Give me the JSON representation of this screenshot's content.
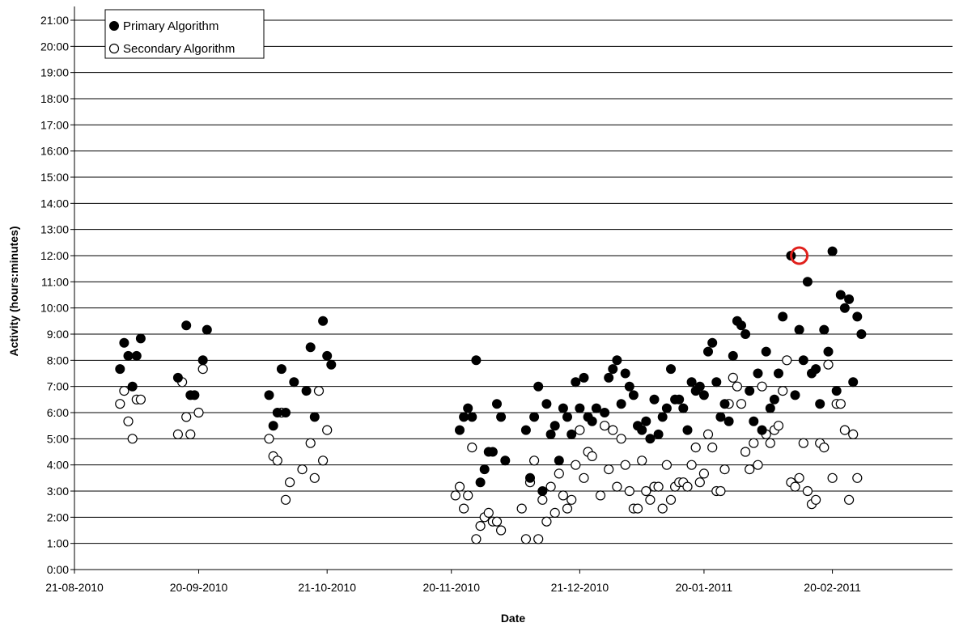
{
  "chart_data": {
    "type": "scatter",
    "title": "",
    "xlabel": "Date",
    "ylabel": "Activity (hours:minutes)",
    "x_ticks": [
      "21-08-2010",
      "20-09-2010",
      "21-10-2010",
      "20-11-2010",
      "21-12-2010",
      "20-01-2011",
      "20-02-2011"
    ],
    "x_range": [
      "21-08-2010",
      "21-03-2011"
    ],
    "y_ticks": [
      "0:00",
      "1:00",
      "2:00",
      "3:00",
      "4:00",
      "5:00",
      "6:00",
      "7:00",
      "8:00",
      "9:00",
      "10:00",
      "11:00",
      "12:00",
      "13:00",
      "14:00",
      "15:00",
      "16:00",
      "17:00",
      "18:00",
      "19:00",
      "20:00",
      "21:00"
    ],
    "ylim": [
      "0:00",
      "21:00"
    ],
    "grid": "horizontal",
    "legend_position": "top-left",
    "highlight": {
      "x": "12-02-2011",
      "y": "12:00",
      "color": "#e0201c"
    },
    "series": [
      {
        "name": "Primary Algorithm",
        "marker": "filled-circle",
        "color": "#000000",
        "points": [
          [
            "01-09-2010",
            "7:40"
          ],
          [
            "02-09-2010",
            "8:40"
          ],
          [
            "03-09-2010",
            "8:10"
          ],
          [
            "04-09-2010",
            "7:00"
          ],
          [
            "05-09-2010",
            "8:10"
          ],
          [
            "06-09-2010",
            "8:50"
          ],
          [
            "15-09-2010",
            "7:20"
          ],
          [
            "17-09-2010",
            "9:20"
          ],
          [
            "18-09-2010",
            "6:40"
          ],
          [
            "19-09-2010",
            "6:40"
          ],
          [
            "21-09-2010",
            "8:00"
          ],
          [
            "22-09-2010",
            "9:10"
          ],
          [
            "07-10-2010",
            "6:40"
          ],
          [
            "08-10-2010",
            "5:30"
          ],
          [
            "09-10-2010",
            "6:00"
          ],
          [
            "10-10-2010",
            "7:40"
          ],
          [
            "11-10-2010",
            "6:00"
          ],
          [
            "13-10-2010",
            "7:10"
          ],
          [
            "16-10-2010",
            "6:50"
          ],
          [
            "17-10-2010",
            "8:30"
          ],
          [
            "18-10-2010",
            "5:50"
          ],
          [
            "20-10-2010",
            "9:30"
          ],
          [
            "21-10-2010",
            "8:10"
          ],
          [
            "22-10-2010",
            "7:50"
          ],
          [
            "22-11-2010",
            "5:20"
          ],
          [
            "23-11-2010",
            "5:50"
          ],
          [
            "24-11-2010",
            "6:10"
          ],
          [
            "25-11-2010",
            "5:50"
          ],
          [
            "26-11-2010",
            "8:00"
          ],
          [
            "27-11-2010",
            "3:20"
          ],
          [
            "28-11-2010",
            "3:50"
          ],
          [
            "29-11-2010",
            "4:30"
          ],
          [
            "30-11-2010",
            "4:30"
          ],
          [
            "01-12-2010",
            "6:20"
          ],
          [
            "02-12-2010",
            "5:50"
          ],
          [
            "03-12-2010",
            "4:10"
          ],
          [
            "08-12-2010",
            "5:20"
          ],
          [
            "09-12-2010",
            "3:30"
          ],
          [
            "10-12-2010",
            "5:50"
          ],
          [
            "11-12-2010",
            "7:00"
          ],
          [
            "12-12-2010",
            "3:00"
          ],
          [
            "13-12-2010",
            "6:20"
          ],
          [
            "14-12-2010",
            "5:10"
          ],
          [
            "15-12-2010",
            "5:30"
          ],
          [
            "16-12-2010",
            "4:10"
          ],
          [
            "17-12-2010",
            "6:10"
          ],
          [
            "18-12-2010",
            "5:50"
          ],
          [
            "19-12-2010",
            "5:10"
          ],
          [
            "20-12-2010",
            "7:10"
          ],
          [
            "21-12-2010",
            "6:10"
          ],
          [
            "22-12-2010",
            "7:20"
          ],
          [
            "23-12-2010",
            "5:50"
          ],
          [
            "24-12-2010",
            "5:40"
          ],
          [
            "25-12-2010",
            "6:10"
          ],
          [
            "27-12-2010",
            "6:00"
          ],
          [
            "28-12-2010",
            "7:20"
          ],
          [
            "29-12-2010",
            "7:40"
          ],
          [
            "30-12-2010",
            "8:00"
          ],
          [
            "31-12-2010",
            "6:20"
          ],
          [
            "01-01-2011",
            "7:30"
          ],
          [
            "02-01-2011",
            "7:00"
          ],
          [
            "03-01-2011",
            "6:40"
          ],
          [
            "04-01-2011",
            "5:30"
          ],
          [
            "05-01-2011",
            "5:20"
          ],
          [
            "06-01-2011",
            "5:40"
          ],
          [
            "07-01-2011",
            "5:00"
          ],
          [
            "08-01-2011",
            "6:30"
          ],
          [
            "09-01-2011",
            "5:10"
          ],
          [
            "10-01-2011",
            "5:50"
          ],
          [
            "11-01-2011",
            "6:10"
          ],
          [
            "12-01-2011",
            "7:40"
          ],
          [
            "13-01-2011",
            "6:30"
          ],
          [
            "14-01-2011",
            "6:30"
          ],
          [
            "15-01-2011",
            "6:10"
          ],
          [
            "16-01-2011",
            "5:20"
          ],
          [
            "17-01-2011",
            "7:10"
          ],
          [
            "18-01-2011",
            "6:50"
          ],
          [
            "19-01-2011",
            "7:00"
          ],
          [
            "20-01-2011",
            "6:40"
          ],
          [
            "21-01-2011",
            "8:20"
          ],
          [
            "22-01-2011",
            "8:40"
          ],
          [
            "23-01-2011",
            "7:10"
          ],
          [
            "24-01-2011",
            "5:50"
          ],
          [
            "25-01-2011",
            "6:20"
          ],
          [
            "26-01-2011",
            "5:40"
          ],
          [
            "27-01-2011",
            "8:10"
          ],
          [
            "28-01-2011",
            "9:30"
          ],
          [
            "29-01-2011",
            "9:20"
          ],
          [
            "30-01-2011",
            "9:00"
          ],
          [
            "31-01-2011",
            "6:50"
          ],
          [
            "01-02-2011",
            "5:40"
          ],
          [
            "02-02-2011",
            "7:30"
          ],
          [
            "03-02-2011",
            "5:20"
          ],
          [
            "04-02-2011",
            "8:20"
          ],
          [
            "05-02-2011",
            "6:10"
          ],
          [
            "06-02-2011",
            "6:30"
          ],
          [
            "07-02-2011",
            "7:30"
          ],
          [
            "08-02-2011",
            "9:40"
          ],
          [
            "10-02-2011",
            "12:00"
          ],
          [
            "11-02-2011",
            "6:40"
          ],
          [
            "12-02-2011",
            "9:10"
          ],
          [
            "13-02-2011",
            "8:00"
          ],
          [
            "14-02-2011",
            "11:00"
          ],
          [
            "15-02-2011",
            "7:30"
          ],
          [
            "16-02-2011",
            "7:40"
          ],
          [
            "17-02-2011",
            "6:20"
          ],
          [
            "18-02-2011",
            "9:10"
          ],
          [
            "19-02-2011",
            "8:20"
          ],
          [
            "20-02-2011",
            "12:10"
          ],
          [
            "21-02-2011",
            "6:50"
          ],
          [
            "22-02-2011",
            "10:30"
          ],
          [
            "23-02-2011",
            "10:00"
          ],
          [
            "24-02-2011",
            "10:20"
          ],
          [
            "25-02-2011",
            "7:10"
          ],
          [
            "26-02-2011",
            "9:40"
          ],
          [
            "27-02-2011",
            "9:00"
          ]
        ]
      },
      {
        "name": "Secondary Algorithm",
        "marker": "open-circle",
        "color": "#000000",
        "points": [
          [
            "01-09-2010",
            "6:20"
          ],
          [
            "02-09-2010",
            "6:50"
          ],
          [
            "03-09-2010",
            "5:40"
          ],
          [
            "04-09-2010",
            "5:00"
          ],
          [
            "05-09-2010",
            "6:30"
          ],
          [
            "06-09-2010",
            "6:30"
          ],
          [
            "15-09-2010",
            "5:10"
          ],
          [
            "16-09-2010",
            "7:10"
          ],
          [
            "17-09-2010",
            "5:50"
          ],
          [
            "18-09-2010",
            "5:10"
          ],
          [
            "20-09-2010",
            "6:00"
          ],
          [
            "21-09-2010",
            "7:40"
          ],
          [
            "07-10-2010",
            "5:00"
          ],
          [
            "08-10-2010",
            "4:20"
          ],
          [
            "09-10-2010",
            "4:10"
          ],
          [
            "10-10-2010",
            "6:00"
          ],
          [
            "11-10-2010",
            "2:40"
          ],
          [
            "12-10-2010",
            "3:20"
          ],
          [
            "15-10-2010",
            "3:50"
          ],
          [
            "17-10-2010",
            "4:50"
          ],
          [
            "18-10-2010",
            "3:30"
          ],
          [
            "19-10-2010",
            "6:50"
          ],
          [
            "20-10-2010",
            "4:10"
          ],
          [
            "21-10-2010",
            "5:20"
          ],
          [
            "21-11-2010",
            "2:50"
          ],
          [
            "22-11-2010",
            "3:10"
          ],
          [
            "23-11-2010",
            "2:20"
          ],
          [
            "24-11-2010",
            "2:50"
          ],
          [
            "25-11-2010",
            "4:40"
          ],
          [
            "26-11-2010",
            "1:10"
          ],
          [
            "27-11-2010",
            "1:40"
          ],
          [
            "28-11-2010",
            "2:00"
          ],
          [
            "29-11-2010",
            "2:10"
          ],
          [
            "30-11-2010",
            "1:50"
          ],
          [
            "01-12-2010",
            "1:50"
          ],
          [
            "02-12-2010",
            "1:30"
          ],
          [
            "07-12-2010",
            "2:20"
          ],
          [
            "08-12-2010",
            "1:10"
          ],
          [
            "09-12-2010",
            "3:20"
          ],
          [
            "10-12-2010",
            "4:10"
          ],
          [
            "11-12-2010",
            "1:10"
          ],
          [
            "12-12-2010",
            "2:40"
          ],
          [
            "13-12-2010",
            "1:50"
          ],
          [
            "14-12-2010",
            "3:10"
          ],
          [
            "15-12-2010",
            "2:10"
          ],
          [
            "16-12-2010",
            "3:40"
          ],
          [
            "17-12-2010",
            "2:50"
          ],
          [
            "18-12-2010",
            "2:20"
          ],
          [
            "19-12-2010",
            "2:40"
          ],
          [
            "20-12-2010",
            "4:00"
          ],
          [
            "21-12-2010",
            "5:20"
          ],
          [
            "22-12-2010",
            "3:30"
          ],
          [
            "23-12-2010",
            "4:30"
          ],
          [
            "24-12-2010",
            "4:20"
          ],
          [
            "26-12-2010",
            "2:50"
          ],
          [
            "27-12-2010",
            "5:30"
          ],
          [
            "28-12-2010",
            "3:50"
          ],
          [
            "29-12-2010",
            "5:20"
          ],
          [
            "30-12-2010",
            "3:10"
          ],
          [
            "31-12-2010",
            "5:00"
          ],
          [
            "01-01-2011",
            "4:00"
          ],
          [
            "02-01-2011",
            "3:00"
          ],
          [
            "03-01-2011",
            "2:20"
          ],
          [
            "04-01-2011",
            "2:20"
          ],
          [
            "05-01-2011",
            "4:10"
          ],
          [
            "06-01-2011",
            "3:00"
          ],
          [
            "07-01-2011",
            "2:40"
          ],
          [
            "08-01-2011",
            "3:10"
          ],
          [
            "09-01-2011",
            "3:10"
          ],
          [
            "10-01-2011",
            "2:20"
          ],
          [
            "11-01-2011",
            "4:00"
          ],
          [
            "12-01-2011",
            "2:40"
          ],
          [
            "13-01-2011",
            "3:10"
          ],
          [
            "14-01-2011",
            "3:20"
          ],
          [
            "15-01-2011",
            "3:20"
          ],
          [
            "16-01-2011",
            "3:10"
          ],
          [
            "17-01-2011",
            "4:00"
          ],
          [
            "18-01-2011",
            "4:40"
          ],
          [
            "19-01-2011",
            "3:20"
          ],
          [
            "20-01-2011",
            "3:40"
          ],
          [
            "21-01-2011",
            "5:10"
          ],
          [
            "22-01-2011",
            "4:40"
          ],
          [
            "23-01-2011",
            "3:00"
          ],
          [
            "24-01-2011",
            "3:00"
          ],
          [
            "25-01-2011",
            "3:50"
          ],
          [
            "26-01-2011",
            "6:20"
          ],
          [
            "27-01-2011",
            "7:20"
          ],
          [
            "28-01-2011",
            "7:00"
          ],
          [
            "29-01-2011",
            "6:20"
          ],
          [
            "30-01-2011",
            "4:30"
          ],
          [
            "31-01-2011",
            "3:50"
          ],
          [
            "01-02-2011",
            "4:50"
          ],
          [
            "02-02-2011",
            "4:00"
          ],
          [
            "03-02-2011",
            "7:00"
          ],
          [
            "04-02-2011",
            "5:10"
          ],
          [
            "05-02-2011",
            "4:50"
          ],
          [
            "06-02-2011",
            "5:20"
          ],
          [
            "07-02-2011",
            "5:30"
          ],
          [
            "08-02-2011",
            "6:50"
          ],
          [
            "09-02-2011",
            "8:00"
          ],
          [
            "10-02-2011",
            "3:20"
          ],
          [
            "11-02-2011",
            "3:10"
          ],
          [
            "12-02-2011",
            "3:30"
          ],
          [
            "13-02-2011",
            "4:50"
          ],
          [
            "14-02-2011",
            "3:00"
          ],
          [
            "15-02-2011",
            "2:30"
          ],
          [
            "16-02-2011",
            "2:40"
          ],
          [
            "17-02-2011",
            "4:50"
          ],
          [
            "18-02-2011",
            "4:40"
          ],
          [
            "19-02-2011",
            "7:50"
          ],
          [
            "20-02-2011",
            "3:30"
          ],
          [
            "21-02-2011",
            "6:20"
          ],
          [
            "22-02-2011",
            "6:20"
          ],
          [
            "23-02-2011",
            "5:20"
          ],
          [
            "24-02-2011",
            "2:40"
          ],
          [
            "25-02-2011",
            "5:10"
          ],
          [
            "26-02-2011",
            "3:30"
          ]
        ]
      }
    ]
  }
}
